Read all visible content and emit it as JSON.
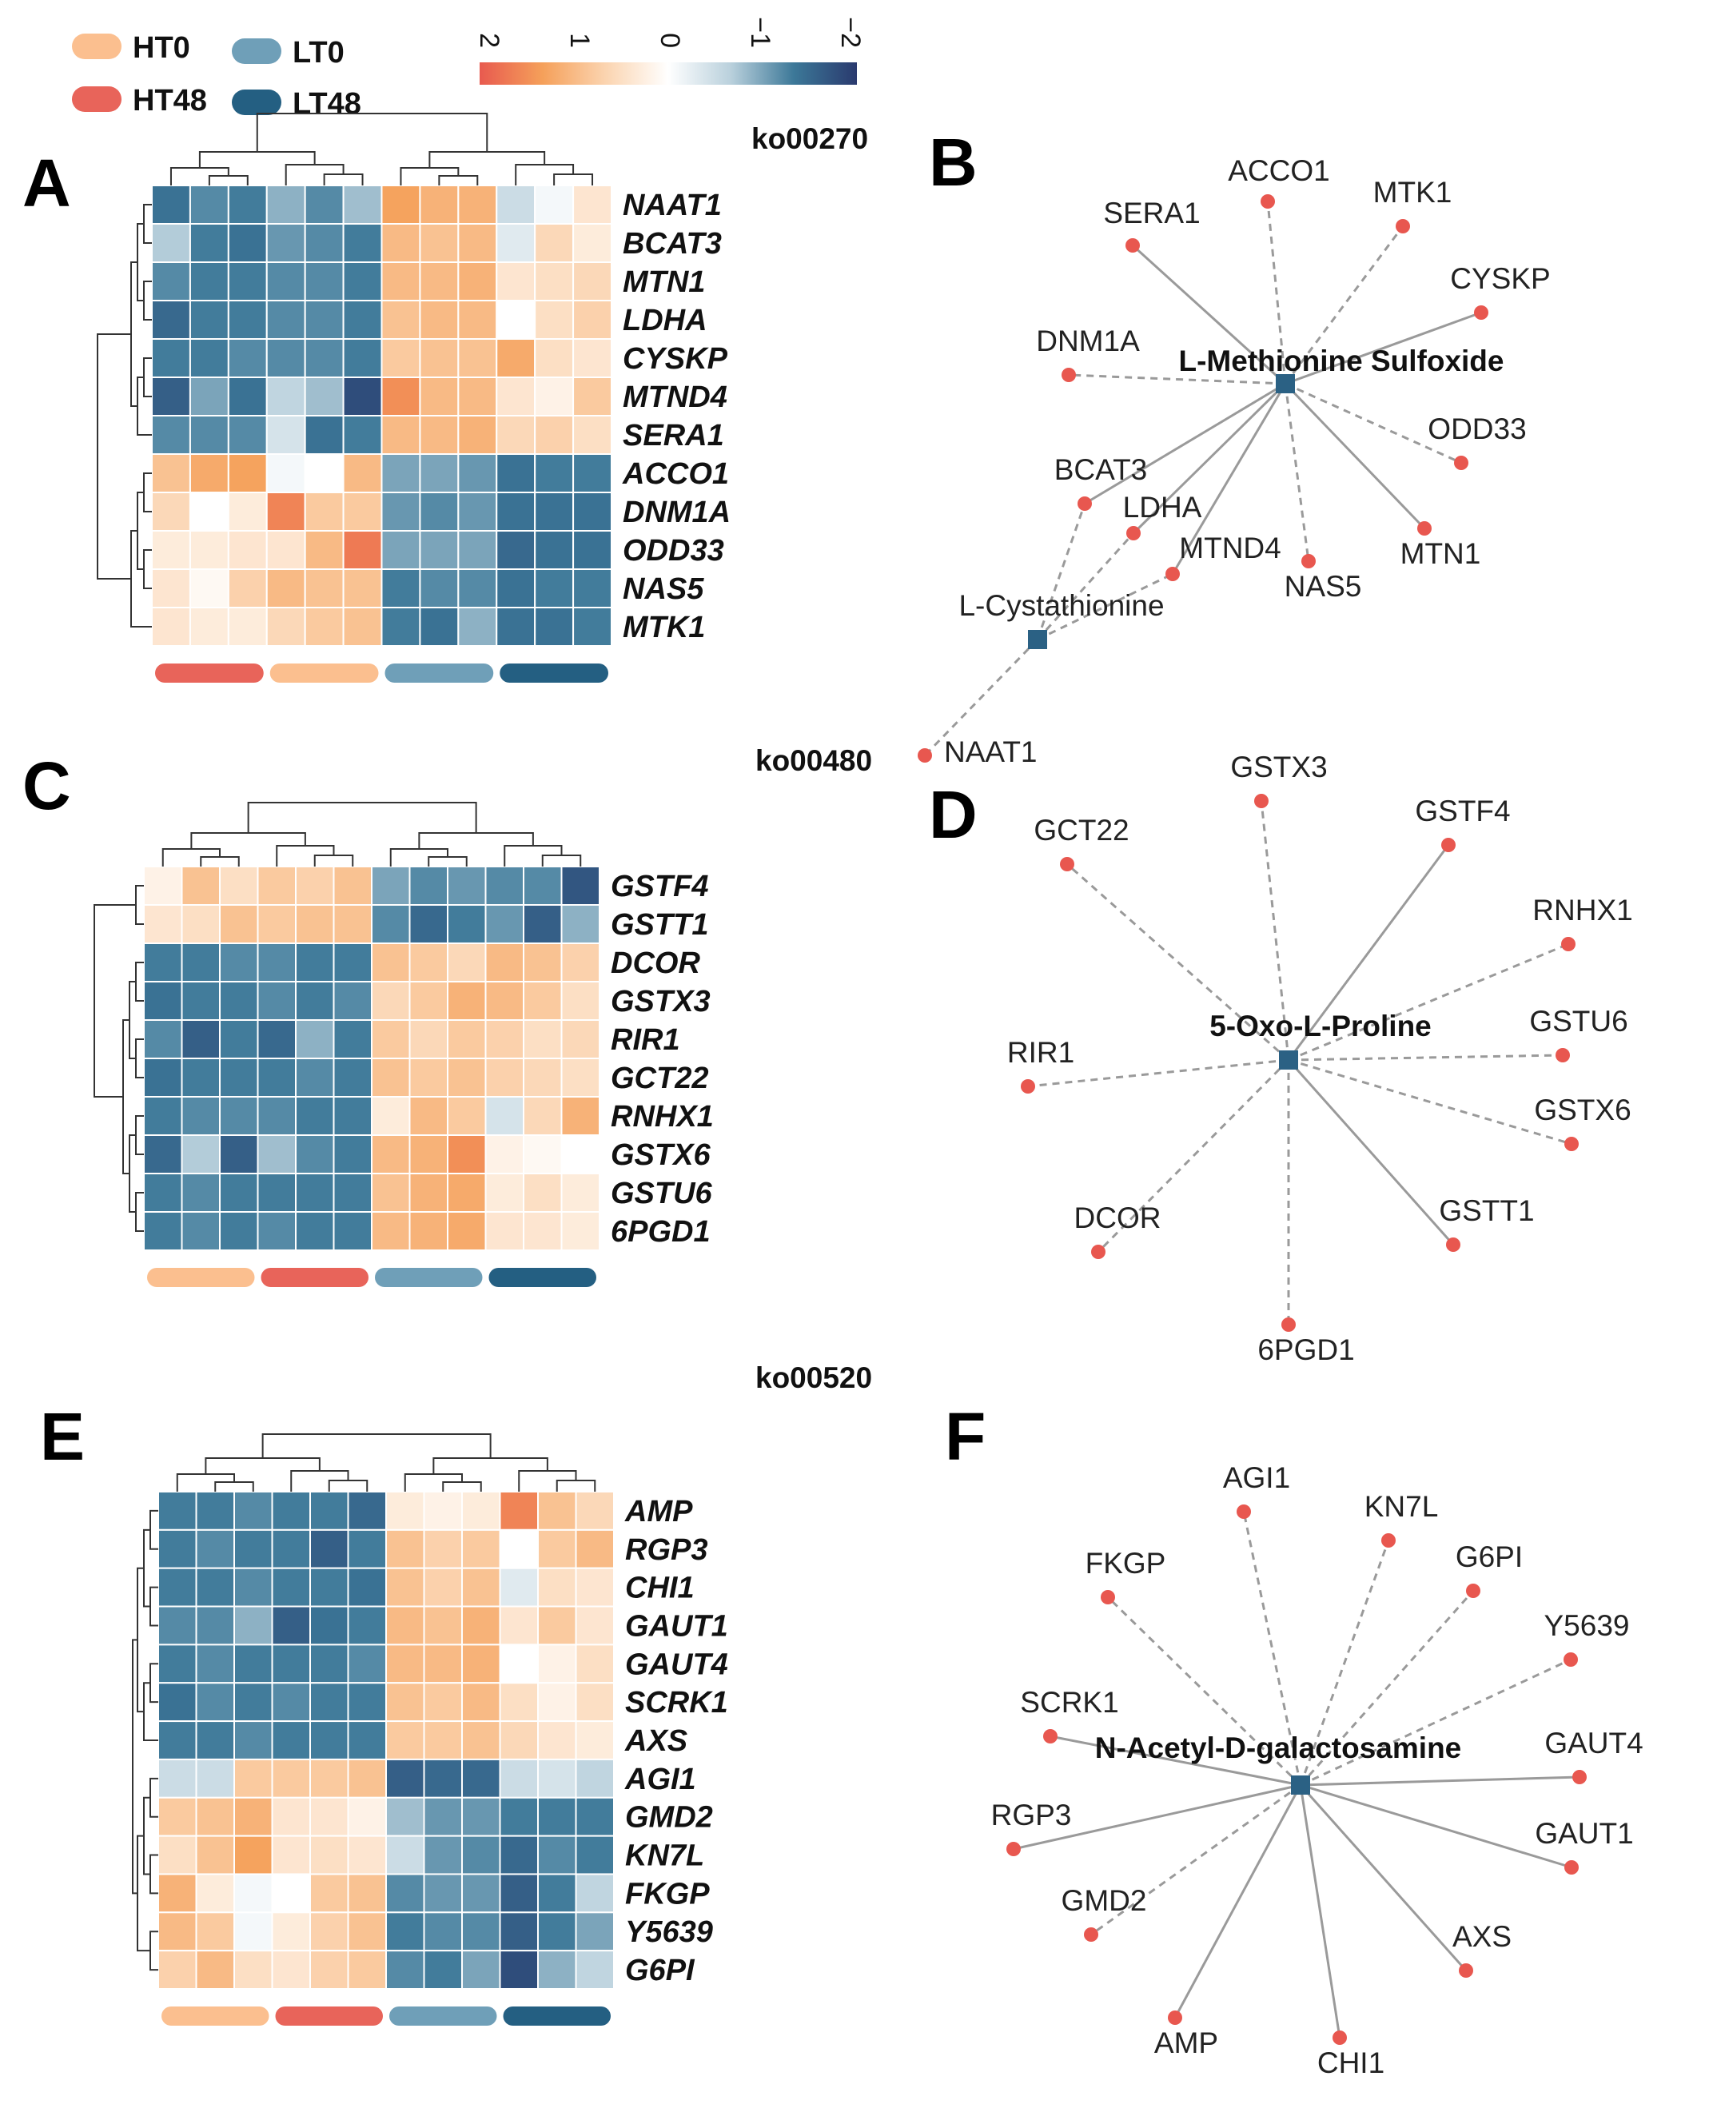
{
  "legend": {
    "groups": [
      {
        "name": "HT0",
        "color": "#fbbf8f"
      },
      {
        "name": "LT0",
        "color": "#6f9fb8"
      },
      {
        "name": "HT48",
        "color": "#e8645a"
      },
      {
        "name": "LT48",
        "color": "#245f82"
      }
    ],
    "colorbar_ticks": [
      "2",
      "1",
      "0",
      "−1",
      "−2"
    ],
    "colorbar_stops": [
      "#e85a4f",
      "#f5a05a",
      "#fbd4b0",
      "#ffffff",
      "#b9d0dc",
      "#3c7898",
      "#2a3a6e"
    ]
  },
  "pathways": [
    "ko00270",
    "ko00480",
    "ko00520"
  ],
  "chart_data": [
    {
      "type": "heatmap",
      "panel": "A",
      "rows": [
        "NAAT1",
        "BCAT3",
        "MTN1",
        "LDHA",
        "CYSKP",
        "MTND4",
        "SERA1",
        "ACCO1",
        "DNM1A",
        "ODD33",
        "NAS5",
        "MTK1"
      ],
      "column_groups": [
        "HT48",
        "HT0",
        "LT0",
        "LT48"
      ],
      "scale_range": [
        -2,
        2
      ],
      "values": [
        [
          -1.4,
          -1.2,
          -1.3,
          -0.9,
          -1.2,
          -0.8,
          1.3,
          1.1,
          1.1,
          -0.5,
          -0.1,
          0.4
        ],
        [
          -0.7,
          -1.3,
          -1.4,
          -1.1,
          -1.2,
          -1.3,
          1.0,
          0.9,
          1.0,
          -0.3,
          0.6,
          0.3
        ],
        [
          -1.2,
          -1.3,
          -1.3,
          -1.2,
          -1.2,
          -1.3,
          1.0,
          1.0,
          1.1,
          0.4,
          0.5,
          0.6
        ],
        [
          -1.5,
          -1.3,
          -1.3,
          -1.2,
          -1.2,
          -1.3,
          0.9,
          1.0,
          1.0,
          0.0,
          0.5,
          0.7
        ],
        [
          -1.3,
          -1.3,
          -1.2,
          -1.2,
          -1.2,
          -1.3,
          0.8,
          0.9,
          0.9,
          1.2,
          0.5,
          0.4
        ],
        [
          -1.6,
          -1.0,
          -1.4,
          -0.6,
          -0.8,
          -1.8,
          1.5,
          1.0,
          1.0,
          0.4,
          0.2,
          0.8
        ],
        [
          -1.2,
          -1.2,
          -1.2,
          -0.4,
          -1.4,
          -1.3,
          1.0,
          1.0,
          1.1,
          0.6,
          0.7,
          0.5
        ],
        [
          0.9,
          1.2,
          1.3,
          -0.1,
          0.0,
          1.0,
          -1.0,
          -1.0,
          -1.1,
          -1.4,
          -1.3,
          -1.3
        ],
        [
          0.6,
          0.0,
          0.3,
          1.6,
          0.8,
          0.8,
          -1.1,
          -1.2,
          -1.1,
          -1.4,
          -1.4,
          -1.4
        ],
        [
          0.3,
          0.3,
          0.4,
          0.4,
          1.0,
          1.7,
          -1.0,
          -1.0,
          -1.0,
          -1.5,
          -1.4,
          -1.4
        ],
        [
          0.4,
          0.1,
          0.7,
          1.0,
          0.9,
          0.9,
          -1.3,
          -1.2,
          -1.2,
          -1.4,
          -1.3,
          -1.3
        ],
        [
          0.4,
          0.3,
          0.3,
          0.6,
          0.8,
          0.9,
          -1.3,
          -1.4,
          -0.9,
          -1.4,
          -1.4,
          -1.3
        ]
      ]
    },
    {
      "type": "heatmap",
      "panel": "C",
      "rows": [
        "GSTF4",
        "GSTT1",
        "DCOR",
        "GSTX3",
        "RIR1",
        "GCT22",
        "RNHX1",
        "GSTX6",
        "GSTU6",
        "6PGD1"
      ],
      "column_groups": [
        "HT0",
        "HT48",
        "LT0",
        "LT48"
      ],
      "scale_range": [
        -2,
        2
      ],
      "values": [
        [
          0.2,
          0.9,
          0.5,
          0.8,
          0.7,
          0.9,
          -1.0,
          -1.2,
          -1.1,
          -1.2,
          -1.2,
          -1.7
        ],
        [
          0.4,
          0.5,
          0.9,
          0.8,
          0.9,
          0.9,
          -1.2,
          -1.5,
          -1.3,
          -1.1,
          -1.6,
          -0.9
        ],
        [
          -1.3,
          -1.3,
          -1.2,
          -1.2,
          -1.3,
          -1.3,
          0.9,
          0.8,
          0.6,
          1.0,
          0.9,
          0.7
        ],
        [
          -1.4,
          -1.3,
          -1.3,
          -1.2,
          -1.3,
          -1.2,
          0.6,
          0.8,
          1.1,
          1.0,
          0.8,
          0.5
        ],
        [
          -1.2,
          -1.6,
          -1.3,
          -1.5,
          -0.9,
          -1.3,
          0.8,
          0.6,
          0.8,
          0.7,
          0.5,
          0.6
        ],
        [
          -1.4,
          -1.3,
          -1.3,
          -1.3,
          -1.2,
          -1.3,
          0.9,
          0.8,
          0.9,
          0.7,
          0.6,
          0.5
        ],
        [
          -1.3,
          -1.2,
          -1.2,
          -1.2,
          -1.3,
          -1.3,
          0.3,
          1.0,
          0.8,
          -0.4,
          0.6,
          1.1
        ],
        [
          -1.5,
          -0.7,
          -1.6,
          -0.8,
          -1.2,
          -1.3,
          1.0,
          1.1,
          1.5,
          0.2,
          0.1,
          0.0
        ],
        [
          -1.3,
          -1.2,
          -1.3,
          -1.3,
          -1.3,
          -1.3,
          0.9,
          1.1,
          1.2,
          0.3,
          0.5,
          0.3
        ],
        [
          -1.3,
          -1.2,
          -1.3,
          -1.2,
          -1.3,
          -1.3,
          1.0,
          1.1,
          1.2,
          0.4,
          0.4,
          0.3
        ]
      ]
    },
    {
      "type": "heatmap",
      "panel": "E",
      "rows": [
        "AMP",
        "RGP3",
        "CHI1",
        "GAUT1",
        "GAUT4",
        "SCRK1",
        "AXS",
        "AGI1",
        "GMD2",
        "KN7L",
        "FKGP",
        "Y5639",
        "G6PI"
      ],
      "column_groups": [
        "HT0",
        "HT48",
        "LT0",
        "LT48"
      ],
      "scale_range": [
        -2,
        2
      ],
      "values": [
        [
          -1.3,
          -1.3,
          -1.2,
          -1.3,
          -1.3,
          -1.5,
          0.3,
          0.2,
          0.3,
          1.6,
          0.9,
          0.6
        ],
        [
          -1.3,
          -1.2,
          -1.3,
          -1.3,
          -1.6,
          -1.3,
          0.9,
          0.7,
          0.8,
          0.0,
          0.8,
          1.0
        ],
        [
          -1.3,
          -1.3,
          -1.2,
          -1.3,
          -1.3,
          -1.4,
          0.9,
          0.7,
          0.9,
          -0.3,
          0.5,
          0.4
        ],
        [
          -1.2,
          -1.2,
          -0.9,
          -1.6,
          -1.4,
          -1.3,
          1.0,
          0.9,
          1.1,
          0.4,
          0.8,
          0.4
        ],
        [
          -1.3,
          -1.2,
          -1.3,
          -1.3,
          -1.3,
          -1.2,
          1.0,
          1.0,
          1.1,
          0.0,
          0.2,
          0.5
        ],
        [
          -1.4,
          -1.2,
          -1.3,
          -1.2,
          -1.3,
          -1.3,
          0.9,
          0.8,
          1.0,
          0.5,
          0.2,
          0.5
        ],
        [
          -1.3,
          -1.3,
          -1.2,
          -1.3,
          -1.3,
          -1.3,
          0.8,
          0.8,
          0.9,
          0.6,
          0.4,
          0.3
        ],
        [
          -0.5,
          -0.5,
          0.8,
          0.8,
          0.8,
          0.9,
          -1.6,
          -1.5,
          -1.5,
          -0.5,
          -0.4,
          -0.6
        ],
        [
          0.8,
          0.9,
          1.1,
          0.4,
          0.4,
          0.2,
          -0.8,
          -1.1,
          -1.1,
          -1.3,
          -1.3,
          -1.3
        ],
        [
          0.5,
          0.9,
          1.3,
          0.4,
          0.5,
          0.4,
          -0.5,
          -1.1,
          -1.2,
          -1.5,
          -1.2,
          -1.3
        ],
        [
          1.1,
          0.3,
          -0.1,
          0.0,
          0.8,
          0.9,
          -1.2,
          -1.1,
          -1.1,
          -1.6,
          -1.3,
          -0.6
        ],
        [
          1.0,
          0.8,
          -0.1,
          0.3,
          0.7,
          0.9,
          -1.3,
          -1.2,
          -1.2,
          -1.6,
          -1.3,
          -1.0
        ],
        [
          0.7,
          1.0,
          0.5,
          0.4,
          0.7,
          0.8,
          -1.2,
          -1.3,
          -1.0,
          -1.8,
          -0.9,
          -0.6
        ]
      ]
    },
    {
      "type": "network",
      "panel": "B",
      "compounds": [
        "L-Methionine Sulfoxide",
        "L-Cystathionine"
      ],
      "genes": [
        "ACCO1",
        "MTK1",
        "SERA1",
        "CYSKP",
        "DNM1A",
        "ODD33",
        "BCAT3",
        "LDHA",
        "MTND4",
        "NAS5",
        "MTN1",
        "NAAT1"
      ],
      "edges": [
        {
          "source": "L-Methionine Sulfoxide",
          "target": "ACCO1",
          "style": "dashed"
        },
        {
          "source": "L-Methionine Sulfoxide",
          "target": "MTK1",
          "style": "dashed"
        },
        {
          "source": "L-Methionine Sulfoxide",
          "target": "SERA1",
          "style": "solid"
        },
        {
          "source": "L-Methionine Sulfoxide",
          "target": "CYSKP",
          "style": "solid"
        },
        {
          "source": "L-Methionine Sulfoxide",
          "target": "DNM1A",
          "style": "dashed"
        },
        {
          "source": "L-Methionine Sulfoxide",
          "target": "ODD33",
          "style": "dashed"
        },
        {
          "source": "L-Methionine Sulfoxide",
          "target": "BCAT3",
          "style": "solid"
        },
        {
          "source": "L-Methionine Sulfoxide",
          "target": "LDHA",
          "style": "solid"
        },
        {
          "source": "L-Methionine Sulfoxide",
          "target": "MTND4",
          "style": "solid"
        },
        {
          "source": "L-Methionine Sulfoxide",
          "target": "NAS5",
          "style": "dashed"
        },
        {
          "source": "L-Methionine Sulfoxide",
          "target": "MTN1",
          "style": "solid"
        },
        {
          "source": "L-Cystathionine",
          "target": "BCAT3",
          "style": "dashed"
        },
        {
          "source": "L-Cystathionine",
          "target": "LDHA",
          "style": "dashed"
        },
        {
          "source": "L-Cystathionine",
          "target": "MTND4",
          "style": "dashed"
        },
        {
          "source": "L-Cystathionine",
          "target": "NAAT1",
          "style": "dashed"
        }
      ]
    },
    {
      "type": "network",
      "panel": "D",
      "compounds": [
        "5-Oxo-L-Proline"
      ],
      "genes": [
        "GSTX3",
        "GCT22",
        "GSTF4",
        "RNHX1",
        "GSTU6",
        "RIR1",
        "GSTX6",
        "DCOR",
        "GSTT1",
        "6PGD1"
      ],
      "edges": [
        {
          "source": "5-Oxo-L-Proline",
          "target": "GSTX3",
          "style": "dashed"
        },
        {
          "source": "5-Oxo-L-Proline",
          "target": "GCT22",
          "style": "dashed"
        },
        {
          "source": "5-Oxo-L-Proline",
          "target": "GSTF4",
          "style": "solid"
        },
        {
          "source": "5-Oxo-L-Proline",
          "target": "RNHX1",
          "style": "dashed"
        },
        {
          "source": "5-Oxo-L-Proline",
          "target": "GSTU6",
          "style": "dashed"
        },
        {
          "source": "5-Oxo-L-Proline",
          "target": "RIR1",
          "style": "dashed"
        },
        {
          "source": "5-Oxo-L-Proline",
          "target": "GSTX6",
          "style": "dashed"
        },
        {
          "source": "5-Oxo-L-Proline",
          "target": "DCOR",
          "style": "dashed"
        },
        {
          "source": "5-Oxo-L-Proline",
          "target": "GSTT1",
          "style": "solid"
        },
        {
          "source": "5-Oxo-L-Proline",
          "target": "6PGD1",
          "style": "dashed"
        }
      ]
    },
    {
      "type": "network",
      "panel": "F",
      "compounds": [
        "N-Acetyl-D-galactosamine"
      ],
      "genes": [
        "AGI1",
        "KN7L",
        "FKGP",
        "G6PI",
        "Y5639",
        "SCRK1",
        "GAUT4",
        "RGP3",
        "GAUT1",
        "GMD2",
        "AXS",
        "AMP",
        "CHI1"
      ],
      "edges": [
        {
          "source": "N-Acetyl-D-galactosamine",
          "target": "AGI1",
          "style": "dashed"
        },
        {
          "source": "N-Acetyl-D-galactosamine",
          "target": "KN7L",
          "style": "dashed"
        },
        {
          "source": "N-Acetyl-D-galactosamine",
          "target": "FKGP",
          "style": "dashed"
        },
        {
          "source": "N-Acetyl-D-galactosamine",
          "target": "G6PI",
          "style": "dashed"
        },
        {
          "source": "N-Acetyl-D-galactosamine",
          "target": "Y5639",
          "style": "dashed"
        },
        {
          "source": "N-Acetyl-D-galactosamine",
          "target": "SCRK1",
          "style": "solid"
        },
        {
          "source": "N-Acetyl-D-galactosamine",
          "target": "GAUT4",
          "style": "solid"
        },
        {
          "source": "N-Acetyl-D-galactosamine",
          "target": "RGP3",
          "style": "solid"
        },
        {
          "source": "N-Acetyl-D-galactosamine",
          "target": "GAUT1",
          "style": "solid"
        },
        {
          "source": "N-Acetyl-D-galactosamine",
          "target": "GMD2",
          "style": "dashed"
        },
        {
          "source": "N-Acetyl-D-galactosamine",
          "target": "AXS",
          "style": "solid"
        },
        {
          "source": "N-Acetyl-D-galactosamine",
          "target": "AMP",
          "style": "solid"
        },
        {
          "source": "N-Acetyl-D-galactosamine",
          "target": "CHI1",
          "style": "solid"
        }
      ]
    }
  ]
}
